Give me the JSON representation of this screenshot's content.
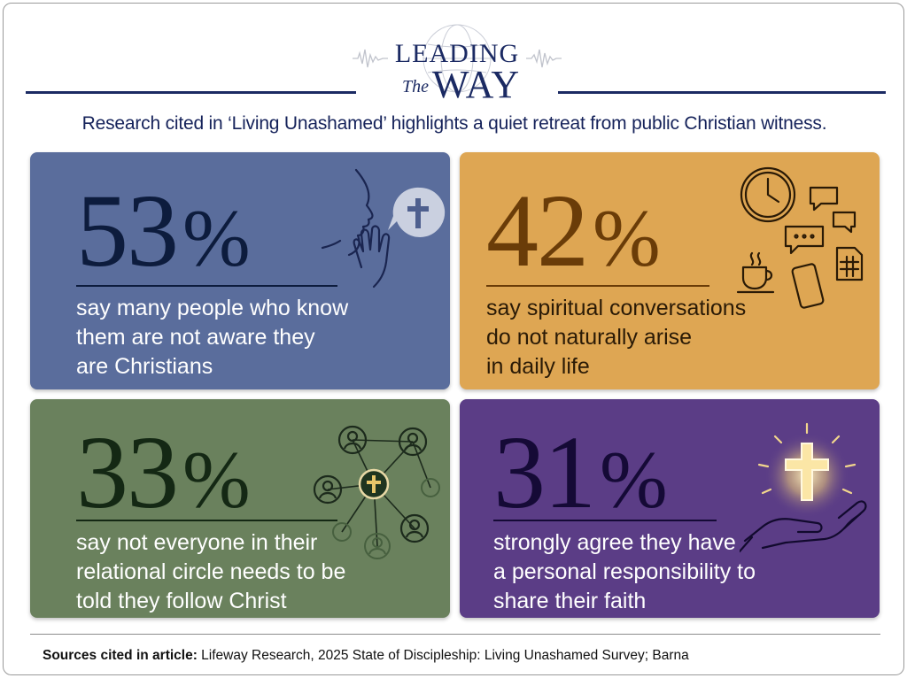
{
  "header": {
    "logo_leading": "LEADING",
    "logo_the": "The",
    "logo_way": "WAY",
    "subtitle": "Research cited in ‘Living Unashamed’ highlights a quiet retreat from public Christian witness."
  },
  "cards": [
    {
      "value": "53",
      "symbol": "%",
      "text": [
        "say many people who know",
        "them are not aware they",
        "are Christians"
      ],
      "icon": "whisper-face-cross-bubble-icon",
      "color": "#5a6d9c"
    },
    {
      "value": "42",
      "symbol": "%",
      "text": [
        "say spiritual conversations",
        "do not naturally arise",
        "in daily life"
      ],
      "icon": "daily-life-clock-chat-phone-icon",
      "color": "#dea653"
    },
    {
      "value": "33",
      "symbol": "%",
      "text": [
        "say not everyone in their",
        "relational circle needs to be",
        "told they follow Christ"
      ],
      "icon": "relational-network-cross-icon",
      "color": "#6a815d"
    },
    {
      "value": "31",
      "symbol": "%",
      "text": [
        "strongly agree they have",
        "a personal responsibility to",
        "share their faith"
      ],
      "icon": "hand-holding-glowing-cross-icon",
      "color": "#5b3d86"
    }
  ],
  "footer": {
    "label": "Sources cited in article:",
    "text": " Lifeway Research, 2025 State of Discipleship: Living Unashamed Survey; Barna"
  }
}
